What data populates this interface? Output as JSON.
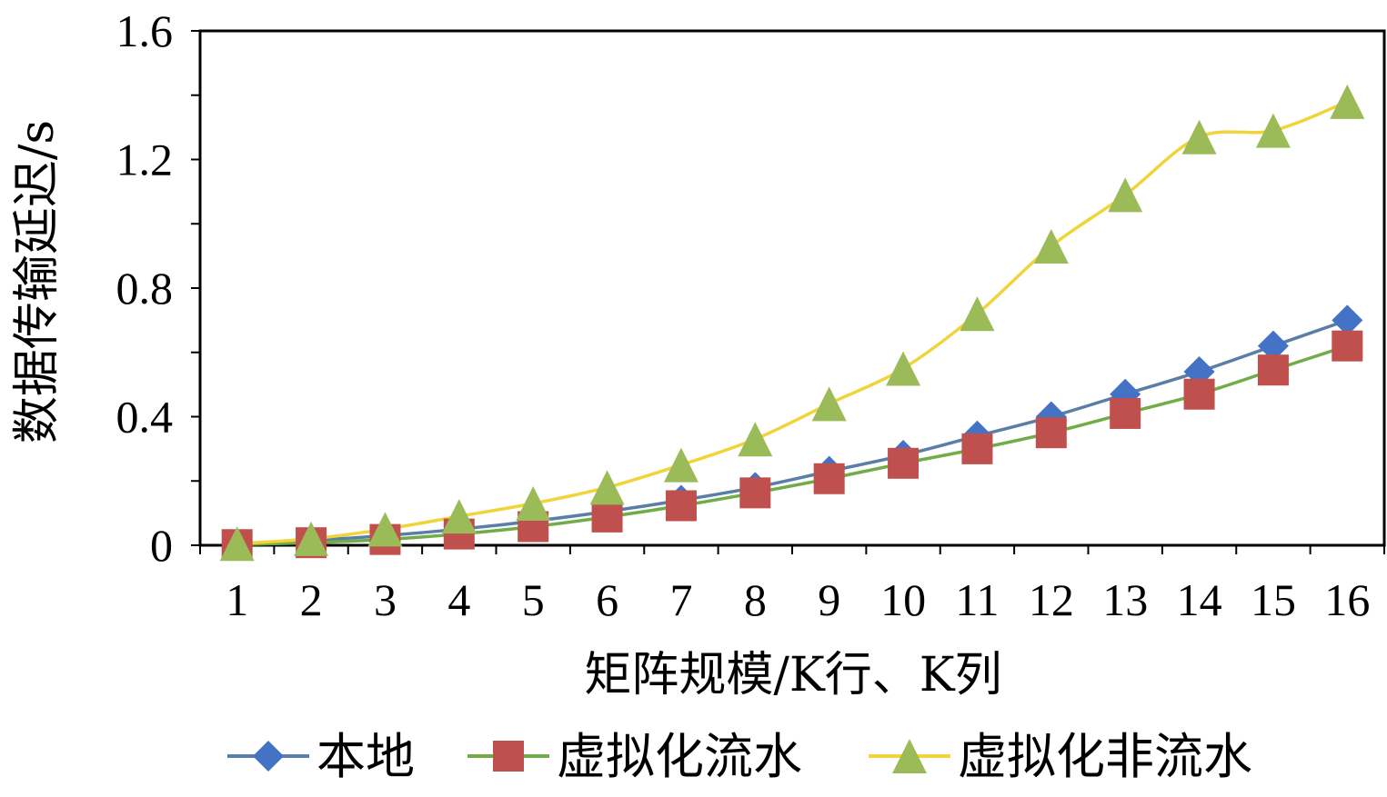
{
  "chart_data": {
    "type": "line",
    "title": "",
    "xlabel": "矩阵规模/K行、K列",
    "ylabel": "数据传输延迟/s",
    "categories": [
      "1",
      "2",
      "3",
      "4",
      "5",
      "6",
      "7",
      "8",
      "9",
      "10",
      "11",
      "12",
      "13",
      "14",
      "15",
      "16"
    ],
    "y_ticks": [
      "0",
      "0.4",
      "0.8",
      "1.2",
      "1.6"
    ],
    "ylim": [
      0,
      1.6
    ],
    "grid": false,
    "legend_position": "bottom",
    "series": [
      {
        "name": "本地",
        "marker": "diamond",
        "line_color": "#5b7ea6",
        "marker_color": "#4472c4",
        "values": [
          0.005,
          0.015,
          0.03,
          0.05,
          0.075,
          0.105,
          0.14,
          0.18,
          0.23,
          0.28,
          0.34,
          0.4,
          0.47,
          0.54,
          0.62,
          0.7
        ]
      },
      {
        "name": "虚拟化流水",
        "marker": "square",
        "line_color": "#70ad47",
        "marker_color": "#c0504d",
        "values": [
          0.002,
          0.008,
          0.018,
          0.035,
          0.058,
          0.088,
          0.123,
          0.163,
          0.207,
          0.255,
          0.3,
          0.35,
          0.41,
          0.47,
          0.545,
          0.62
        ]
      },
      {
        "name": "虚拟化非流水",
        "marker": "triangle",
        "line_color": "#f0d43a",
        "marker_color": "#9bbb59",
        "values": [
          0.005,
          0.02,
          0.05,
          0.09,
          0.13,
          0.18,
          0.25,
          0.33,
          0.44,
          0.55,
          0.72,
          0.93,
          1.09,
          1.27,
          1.29,
          1.38
        ]
      }
    ]
  }
}
